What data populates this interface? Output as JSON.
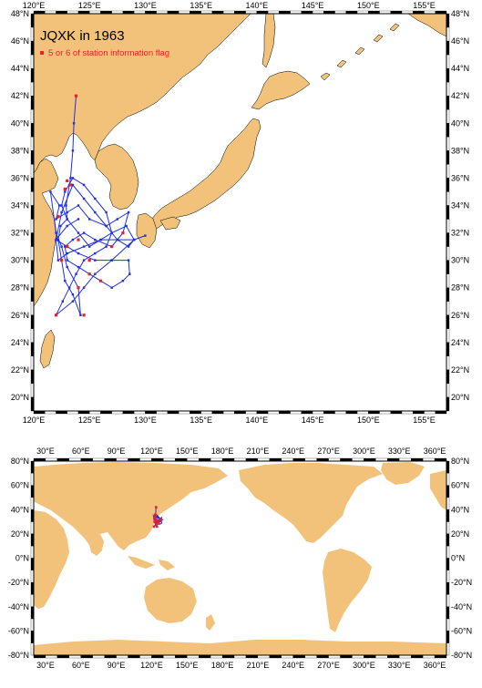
{
  "top_map": {
    "title": "JQXK in 1963",
    "legend_label": "5 or 6 of station information flag",
    "x_ticks": [
      "120°E",
      "125°E",
      "130°E",
      "135°E",
      "140°E",
      "145°E",
      "150°E",
      "155°E"
    ],
    "y_ticks": [
      "48°N",
      "46°N",
      "44°N",
      "42°N",
      "40°N",
      "38°N",
      "36°N",
      "34°N",
      "32°N",
      "30°N",
      "28°N",
      "26°N",
      "24°N",
      "22°N",
      "20°N"
    ],
    "lon_range": [
      120,
      157
    ],
    "lat_range": [
      19,
      48
    ],
    "land_color": "#f2c27b",
    "track_color": "#1f2fe0",
    "flag_color": "#e8212b"
  },
  "bottom_map": {
    "x_ticks": [
      "30°E",
      "60°E",
      "90°E",
      "120°E",
      "150°E",
      "180°E",
      "210°E",
      "240°E",
      "270°E",
      "300°E",
      "330°E",
      "360°E"
    ],
    "y_ticks": [
      "80°N",
      "60°N",
      "40°N",
      "20°N",
      "0°N",
      "-20°N",
      "-40°N",
      "-60°N",
      "-80°N"
    ],
    "lon_range": [
      20,
      370
    ],
    "lat_range": [
      -80,
      80
    ]
  },
  "chart_data": {
    "type": "scatter",
    "title": "JQXK in 1963",
    "series": [
      {
        "name": "",
        "lon": [
          123.8,
          123.6,
          123.5,
          123.3,
          123.2,
          122.9,
          123.0,
          122.4,
          122.2,
          122.5,
          122.8,
          123.5,
          124.2,
          124.0,
          123.0,
          122.5,
          122.0,
          121.5,
          122.3,
          122.0,
          123.0,
          124.0,
          125.0,
          126.5,
          127.5,
          128.5,
          128.0,
          127.0,
          125.5,
          124.5,
          123.5,
          122.8,
          123.0,
          124.0,
          125.0,
          126.0,
          127.0,
          128.0,
          128.6,
          128.5,
          127.0,
          125.5,
          124.0,
          123.0,
          122.0,
          122.5,
          123.5,
          124.5,
          125.5,
          126.5,
          127.5,
          128.5,
          129.0,
          128.3,
          127.0,
          126.0,
          125.0,
          124.0,
          123.0,
          122.5,
          122.8,
          123.5,
          124.5,
          125.5,
          126.5,
          127.0,
          126.5,
          125.5,
          124.5,
          123.8,
          123.2,
          122.6,
          122.0,
          122.0,
          123.5,
          124.5,
          125.5,
          127.0,
          129.0,
          130.0,
          129.0,
          127.5,
          126.0,
          124.5,
          123.0,
          122.2,
          122.0,
          123.0,
          124.0
        ],
        "lat": [
          42.0,
          40.0,
          38.0,
          36.0,
          35.5,
          34.0,
          33.0,
          32.5,
          31.5,
          30.0,
          28.5,
          27.5,
          26.0,
          28.0,
          29.5,
          31.0,
          32.0,
          35.0,
          34.0,
          33.0,
          33.5,
          34.0,
          33.0,
          32.5,
          33.0,
          33.5,
          32.0,
          31.0,
          31.5,
          32.0,
          31.5,
          31.0,
          30.0,
          29.5,
          29.0,
          28.5,
          28.0,
          28.5,
          29.0,
          30.0,
          30.0,
          30.0,
          30.5,
          31.0,
          31.5,
          33.5,
          35.5,
          34.5,
          33.5,
          32.5,
          31.5,
          31.0,
          31.5,
          32.5,
          32.0,
          31.5,
          31.0,
          32.0,
          33.0,
          34.0,
          35.0,
          36.0,
          35.5,
          34.5,
          33.5,
          32.0,
          31.0,
          30.5,
          30.0,
          29.0,
          28.0,
          27.0,
          26.0,
          26.0,
          27.0,
          28.0,
          29.0,
          30.0,
          31.5,
          31.8,
          31.5,
          31.5,
          31.5,
          31.0,
          30.5,
          30.0,
          31.5,
          32.5,
          33.0
        ]
      }
    ],
    "flag_points": {
      "lon": [
        123.8,
        123.0,
        122.8,
        123.3,
        122.2,
        124.0,
        125.0,
        128.0,
        127.0,
        122.0,
        124.5,
        126.0,
        122.5,
        123.0,
        124.0,
        125.0
      ],
      "lat": [
        42.0,
        35.8,
        35.2,
        35.5,
        33.2,
        28.0,
        29.0,
        32.0,
        31.0,
        26.0,
        26.0,
        28.5,
        30.0,
        31.0,
        31.5,
        30.0
      ]
    },
    "x_range": [
      120,
      157
    ],
    "y_range": [
      19,
      48
    ],
    "xlabel": "",
    "ylabel": ""
  }
}
